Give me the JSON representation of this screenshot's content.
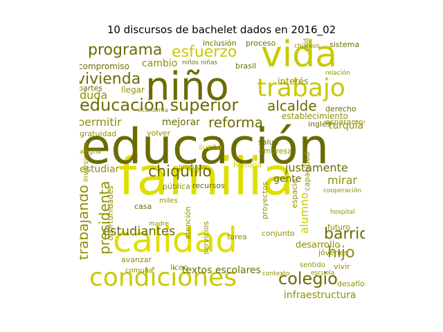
{
  "figure": {
    "title": "10 discursos de bachelet dados en 2016_02"
  },
  "palette": {
    "dark": "#6b6b00",
    "olive": "#8f8f00",
    "mid": "#a8a800",
    "yellow": "#c9c900",
    "bright": "#dede00"
  },
  "words": [
    {
      "text": "familia",
      "color": "bright"
    },
    {
      "text": "educación",
      "color": "dark"
    },
    {
      "text": "calidad",
      "color": "bright"
    },
    {
      "text": "niño",
      "color": "dark"
    },
    {
      "text": "vida",
      "color": "yellow"
    },
    {
      "text": "condiciones",
      "color": "yellow"
    },
    {
      "text": "trabajo",
      "color": "yellow"
    },
    {
      "text": "educación superior",
      "color": "dark"
    },
    {
      "text": "programa",
      "color": "dark"
    },
    {
      "text": "esfuerzo",
      "color": "yellow"
    },
    {
      "text": "vivienda",
      "color": "dark"
    },
    {
      "text": "chiquillo",
      "color": "dark"
    },
    {
      "text": "reforma",
      "color": "dark"
    },
    {
      "text": "alcalde",
      "color": "dark"
    },
    {
      "text": "barrio",
      "color": "dark"
    },
    {
      "text": "colegio",
      "color": "dark"
    },
    {
      "text": "estudiantes",
      "color": "dark"
    },
    {
      "text": "trabajando",
      "color": "olive"
    },
    {
      "text": "presidenta",
      "color": "olive"
    },
    {
      "text": "hijo",
      "color": "olive"
    },
    {
      "text": "justamente",
      "color": "dark"
    },
    {
      "text": "mirar",
      "color": "olive"
    },
    {
      "text": "alumno",
      "color": "yellow"
    },
    {
      "text": "infraestructura",
      "color": "olive"
    },
    {
      "text": "turquía",
      "color": "olive"
    },
    {
      "text": "cambio",
      "color": "olive"
    },
    {
      "text": "compromiso",
      "color": "dark"
    },
    {
      "text": "permitir",
      "color": "olive"
    },
    {
      "text": "mejorar",
      "color": "dark"
    },
    {
      "text": "estudiar",
      "color": "olive"
    },
    {
      "text": "gente",
      "color": "dark"
    },
    {
      "text": "desarrollo",
      "color": "olive"
    },
    {
      "text": "jóvenes",
      "color": "olive"
    },
    {
      "text": "textos escolares",
      "color": "dark"
    },
    {
      "text": "duda",
      "color": "olive"
    },
    {
      "text": "interés",
      "color": "olive"
    },
    {
      "text": "brasil",
      "color": "dark"
    },
    {
      "text": "inclusión",
      "color": "dark"
    },
    {
      "text": "proceso",
      "color": "dark"
    },
    {
      "text": "sistema",
      "color": "dark"
    },
    {
      "text": "establecimiento",
      "color": "olive"
    },
    {
      "text": "esperamos",
      "color": "olive"
    },
    {
      "text": "derecho",
      "color": "dark"
    },
    {
      "text": "gratuidad",
      "color": "olive"
    },
    {
      "text": "volver",
      "color": "olive"
    },
    {
      "text": "sueño",
      "color": "yellow"
    },
    {
      "text": "salud",
      "color": "dark"
    },
    {
      "text": "empresa",
      "color": "olive"
    },
    {
      "text": "historia",
      "color": "yellow"
    },
    {
      "text": "recursos",
      "color": "dark"
    },
    {
      "text": "pública",
      "color": "olive"
    },
    {
      "text": "proyectos",
      "color": "olive"
    },
    {
      "text": "espacio",
      "color": "olive"
    },
    {
      "text": "capacidad",
      "color": "olive"
    },
    {
      "text": "oportunidades",
      "color": "olive"
    },
    {
      "text": "atención",
      "color": "olive"
    },
    {
      "text": "servicios",
      "color": "olive"
    },
    {
      "text": "tarea",
      "color": "olive"
    },
    {
      "text": "conjunto",
      "color": "olive"
    },
    {
      "text": "futuro",
      "color": "olive"
    },
    {
      "text": "vivir",
      "color": "olive"
    },
    {
      "text": "desafío",
      "color": "olive"
    },
    {
      "text": "avanzar",
      "color": "olive"
    },
    {
      "text": "comuna",
      "color": "olive"
    },
    {
      "text": "liceo",
      "color": "olive"
    },
    {
      "text": "sentido",
      "color": "olive"
    },
    {
      "text": "partes",
      "color": "dark"
    },
    {
      "text": "inglés",
      "color": "dark"
    },
    {
      "text": "miles",
      "color": "olive"
    },
    {
      "text": "casa",
      "color": "dark"
    },
    {
      "text": "niños niñas",
      "color": "dark"
    },
    {
      "text": "llegar",
      "color": "olive"
    },
    {
      "text": "inversiones",
      "color": "olive"
    },
    {
      "text": "hospital",
      "color": "olive"
    },
    {
      "text": "escuela",
      "color": "olive"
    },
    {
      "text": "producto",
      "color": "olive"
    },
    {
      "text": "alegría",
      "color": "olive"
    },
    {
      "text": "economía",
      "color": "olive"
    },
    {
      "text": "madre",
      "color": "olive"
    },
    {
      "text": "cooperación",
      "color": "olive"
    },
    {
      "text": "relación",
      "color": "olive"
    },
    {
      "text": "chilenos",
      "color": "olive"
    },
    {
      "text": "ciudad",
      "color": "olive"
    },
    {
      "text": "contexto",
      "color": "olive"
    }
  ]
}
